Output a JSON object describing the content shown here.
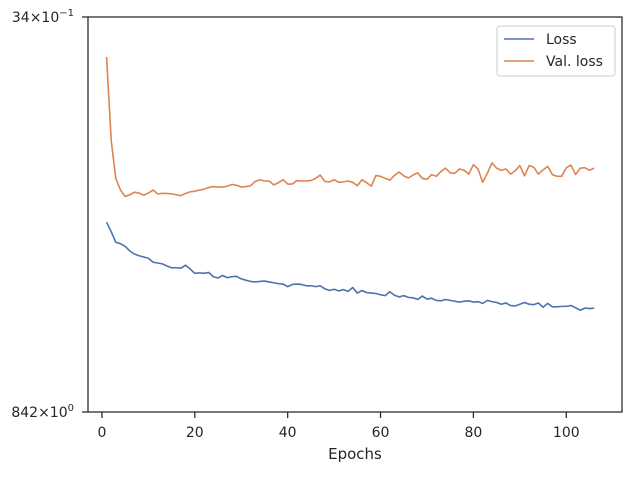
{
  "chart_data": {
    "type": "line",
    "title": "",
    "xlabel": "Epochs",
    "ylabel": "",
    "xlim": [
      -3,
      112
    ],
    "xticks": [
      0,
      20,
      40,
      60,
      80,
      100
    ],
    "xtick_labels": [
      "0",
      "20",
      "40",
      "60",
      "80",
      "100"
    ],
    "ylim": [
      0.842,
      0.934
    ],
    "ytick_labels": {
      "top": {
        "mantissa": "34",
        "base": "10",
        "exp": "−1"
      },
      "bottom": {
        "mantissa": "842",
        "base": "10",
        "exp": "0"
      }
    },
    "grid": false,
    "legend": {
      "position": "top-right",
      "entries": [
        "Loss",
        "Val. loss"
      ]
    },
    "x": [
      1,
      2,
      3,
      4,
      5,
      6,
      7,
      8,
      9,
      10,
      11,
      12,
      13,
      14,
      15,
      16,
      17,
      18,
      19,
      20,
      21,
      22,
      23,
      24,
      25,
      26,
      27,
      28,
      29,
      30,
      31,
      32,
      33,
      34,
      35,
      36,
      37,
      38,
      39,
      40,
      41,
      42,
      43,
      44,
      45,
      46,
      47,
      48,
      49,
      50,
      51,
      52,
      53,
      54,
      55,
      56,
      57,
      58,
      59,
      60,
      61,
      62,
      63,
      64,
      65,
      66,
      67,
      68,
      69,
      70,
      71,
      72,
      73,
      74,
      75,
      76,
      77,
      78,
      79,
      80,
      81,
      82,
      83,
      84,
      85,
      86,
      87,
      88,
      89,
      90,
      91,
      92,
      93,
      94,
      95,
      96,
      97,
      98,
      99,
      100,
      101,
      102,
      103,
      104,
      105,
      106
    ],
    "series": [
      {
        "name": "Loss",
        "color": "#4c72b0",
        "values": [
          0.8862,
          0.884,
          0.8815,
          0.8812,
          0.8806,
          0.8795,
          0.8788,
          0.8784,
          0.8781,
          0.8778,
          0.8769,
          0.8767,
          0.8765,
          0.876,
          0.8756,
          0.8756,
          0.8755,
          0.8762,
          0.8753,
          0.8743,
          0.8744,
          0.8743,
          0.8745,
          0.8735,
          0.8732,
          0.8738,
          0.8733,
          0.8735,
          0.8736,
          0.873,
          0.8727,
          0.8724,
          0.8723,
          0.8724,
          0.8725,
          0.8723,
          0.8721,
          0.8719,
          0.8718,
          0.8712,
          0.8717,
          0.8718,
          0.8717,
          0.8714,
          0.8714,
          0.8712,
          0.8714,
          0.8707,
          0.8703,
          0.8706,
          0.8702,
          0.8705,
          0.8701,
          0.871,
          0.8697,
          0.8703,
          0.8698,
          0.8697,
          0.8696,
          0.8693,
          0.8691,
          0.87,
          0.8692,
          0.8688,
          0.8691,
          0.8687,
          0.8686,
          0.8682,
          0.869,
          0.8683,
          0.8685,
          0.868,
          0.8679,
          0.8682,
          0.868,
          0.8678,
          0.8676,
          0.8678,
          0.8679,
          0.8676,
          0.8677,
          0.8673,
          0.868,
          0.8677,
          0.8675,
          0.8671,
          0.8674,
          0.8668,
          0.8667,
          0.8671,
          0.8675,
          0.8671,
          0.867,
          0.8674,
          0.8664,
          0.8673,
          0.8665,
          0.8665,
          0.8666,
          0.8666,
          0.8668,
          0.8663,
          0.8657,
          0.8662,
          0.8661,
          0.8662
        ]
      },
      {
        "name": "Val. loss",
        "color": "#dd8452",
        "values": [
          0.9247,
          0.9052,
          0.8963,
          0.8937,
          0.8922,
          0.8926,
          0.8932,
          0.893,
          0.8925,
          0.893,
          0.8937,
          0.8928,
          0.8929,
          0.8929,
          0.8928,
          0.8926,
          0.8924,
          0.8929,
          0.8933,
          0.8934,
          0.8937,
          0.8939,
          0.8943,
          0.8945,
          0.8944,
          0.8944,
          0.8946,
          0.895,
          0.8948,
          0.8944,
          0.8945,
          0.8947,
          0.8957,
          0.8961,
          0.8958,
          0.8958,
          0.8949,
          0.8954,
          0.8961,
          0.8951,
          0.8951,
          0.8959,
          0.8958,
          0.8958,
          0.8959,
          0.8964,
          0.8972,
          0.8957,
          0.8956,
          0.8961,
          0.8955,
          0.8956,
          0.8958,
          0.8955,
          0.8947,
          0.8961,
          0.8954,
          0.8946,
          0.8971,
          0.8969,
          0.8964,
          0.896,
          0.8971,
          0.8979,
          0.897,
          0.8965,
          0.8972,
          0.8977,
          0.8964,
          0.8962,
          0.8973,
          0.8969,
          0.898,
          0.8988,
          0.8977,
          0.8976,
          0.8986,
          0.8983,
          0.8974,
          0.8996,
          0.8986,
          0.8955,
          0.8976,
          0.9,
          0.8988,
          0.8983,
          0.8986,
          0.8974,
          0.8982,
          0.8994,
          0.897,
          0.8994,
          0.899,
          0.8974,
          0.8984,
          0.8992,
          0.8973,
          0.8969,
          0.8969,
          0.8989,
          0.8995,
          0.8973,
          0.8988,
          0.8989,
          0.8983,
          0.8988
        ]
      }
    ]
  }
}
